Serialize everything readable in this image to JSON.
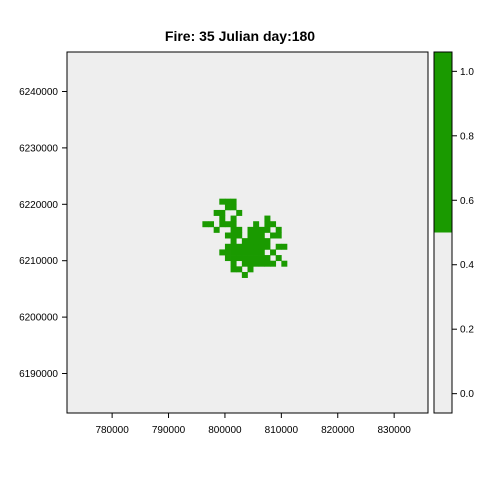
{
  "chart_data": {
    "type": "heatmap",
    "title": "Fire: 35   Julian day:180",
    "xlabel": "",
    "ylabel": "",
    "xlim": [
      772000,
      836000
    ],
    "ylim": [
      6183000,
      6247000
    ],
    "x_ticks": [
      780000,
      790000,
      800000,
      810000,
      820000,
      830000
    ],
    "y_ticks": [
      6190000,
      6200000,
      6210000,
      6220000,
      6230000,
      6240000
    ],
    "x_tick_labels": [
      "780000",
      "790000",
      "800000",
      "810000",
      "820000",
      "830000"
    ],
    "y_tick_labels": [
      "6190000",
      "6200000",
      "6210000",
      "6220000",
      "6230000",
      "6240000"
    ],
    "grid": false,
    "colors": {
      "burned": "#1a9a00",
      "unburned": "#eeeeee"
    },
    "legend": {
      "placement": "right",
      "range": [
        -0.06,
        1.06
      ],
      "ticks": [
        0.0,
        0.2,
        0.4,
        0.6,
        0.8,
        1.0
      ],
      "tick_labels": [
        "0.0",
        "0.2",
        "0.4",
        "0.6",
        "0.8",
        "1.0"
      ],
      "breakpoint": 0.5
    },
    "background_value": 0,
    "cell_size": 1000,
    "burned_blobs": [
      {
        "cx": 804500,
        "cy": 6212500,
        "rx": 5200,
        "ry": 3700,
        "density": 0.93
      },
      {
        "cx": 807000,
        "cy": 6215000,
        "rx": 2800,
        "ry": 2600,
        "density": 0.88
      },
      {
        "cx": 800500,
        "cy": 6218200,
        "rx": 2300,
        "ry": 2600,
        "density": 0.82
      },
      {
        "cx": 797500,
        "cy": 6216500,
        "rx": 1700,
        "ry": 1300,
        "density": 0.65
      },
      {
        "cx": 809500,
        "cy": 6211500,
        "rx": 1600,
        "ry": 2600,
        "density": 0.6
      },
      {
        "cx": 803500,
        "cy": 6208500,
        "rx": 2200,
        "ry": 1200,
        "density": 0.7
      }
    ]
  }
}
